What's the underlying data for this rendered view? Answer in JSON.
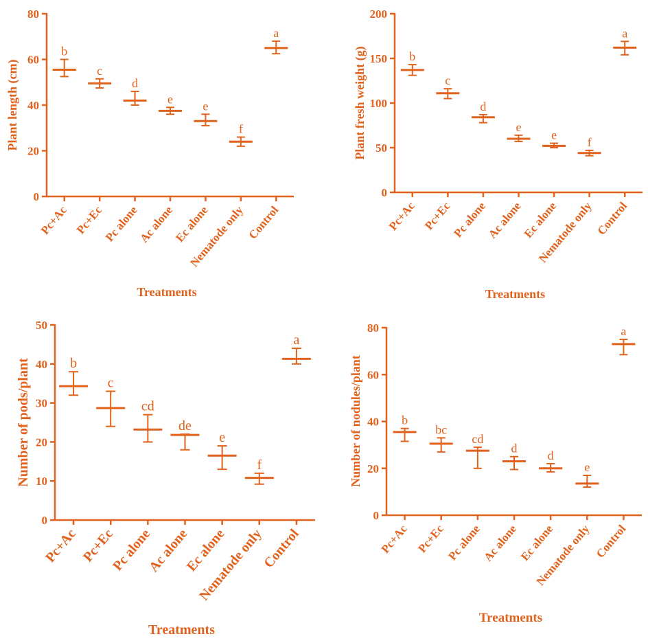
{
  "accent_color": "#e0621c",
  "chart_data": [
    {
      "type": "scatter",
      "ylabel": "Plant length (cm)",
      "xlabel": "Treatments",
      "categories": [
        "Pc+Ac",
        "Pc+Ec",
        "Pc alone",
        "Ac alone",
        "Ec alone",
        "Nematode only",
        "Control"
      ],
      "ylim": [
        0,
        80
      ],
      "yticks": [
        0,
        20,
        40,
        60,
        80
      ],
      "series": [
        {
          "means": [
            55.5,
            49.5,
            42,
            37.5,
            33,
            24,
            65
          ],
          "err_low": [
            52.5,
            47.5,
            40,
            36,
            31,
            22,
            62.5
          ],
          "err_high": [
            60,
            51.5,
            46,
            39,
            36,
            26,
            68
          ],
          "letters": [
            "b",
            "c",
            "d",
            "e",
            "e",
            "f",
            "a"
          ]
        }
      ],
      "grid": false
    },
    {
      "type": "scatter",
      "ylabel": "Plant fresh weight (g)",
      "xlabel": "Treatments",
      "categories": [
        "Pc+Ac",
        "Pc+Ec",
        "Pc alone",
        "Ac alone",
        "Ec alone",
        "Nematode only",
        "Control"
      ],
      "ylim": [
        0,
        200
      ],
      "yticks": [
        0,
        50,
        100,
        150,
        200
      ],
      "series": [
        {
          "means": [
            137,
            111,
            84,
            60,
            52,
            44,
            162
          ],
          "err_low": [
            131,
            105,
            78,
            57,
            50,
            41,
            154
          ],
          "err_high": [
            143,
            116,
            87,
            64,
            55,
            47,
            169
          ],
          "letters": [
            "b",
            "c",
            "d",
            "e",
            "e",
            "f",
            "a"
          ]
        }
      ],
      "grid": false
    },
    {
      "type": "scatter",
      "ylabel": "Number of pods/plant",
      "xlabel": "Treatments",
      "categories": [
        "Pc+Ac",
        "Pc+Ec",
        "Pc alone",
        "Ac alone",
        "Ec alone",
        "Nematode only",
        "Control"
      ],
      "ylim": [
        0,
        50
      ],
      "yticks": [
        0,
        10,
        20,
        30,
        40,
        50
      ],
      "series": [
        {
          "means": [
            34.3,
            28.7,
            23.2,
            21.8,
            16.5,
            10.8,
            41.3
          ],
          "err_low": [
            32,
            24,
            20,
            18,
            13,
            9.2,
            40
          ],
          "err_high": [
            38,
            33,
            27,
            22,
            19,
            12,
            44
          ],
          "letters": [
            "b",
            "c",
            "cd",
            "de",
            "e",
            "f",
            "a"
          ]
        }
      ],
      "grid": false
    },
    {
      "type": "scatter",
      "ylabel": "Number of nodules/plant",
      "xlabel": "Treatments",
      "categories": [
        "Pc+Ac",
        "Pc+Ec",
        "Pc alone",
        "Ac alone",
        "Ec alone",
        "Nematode only",
        "Control"
      ],
      "ylim": [
        0,
        80
      ],
      "yticks": [
        0,
        20,
        40,
        60,
        80
      ],
      "series": [
        {
          "means": [
            35.5,
            30.5,
            27.5,
            23,
            20,
            13.5,
            73
          ],
          "err_low": [
            31.5,
            27,
            20,
            19.5,
            18.5,
            12,
            68.5
          ],
          "err_high": [
            37,
            33,
            29,
            25,
            22,
            17,
            75
          ],
          "letters": [
            "b",
            "bc",
            "cd",
            "d",
            "d",
            "e",
            "a"
          ]
        }
      ],
      "grid": false
    }
  ]
}
